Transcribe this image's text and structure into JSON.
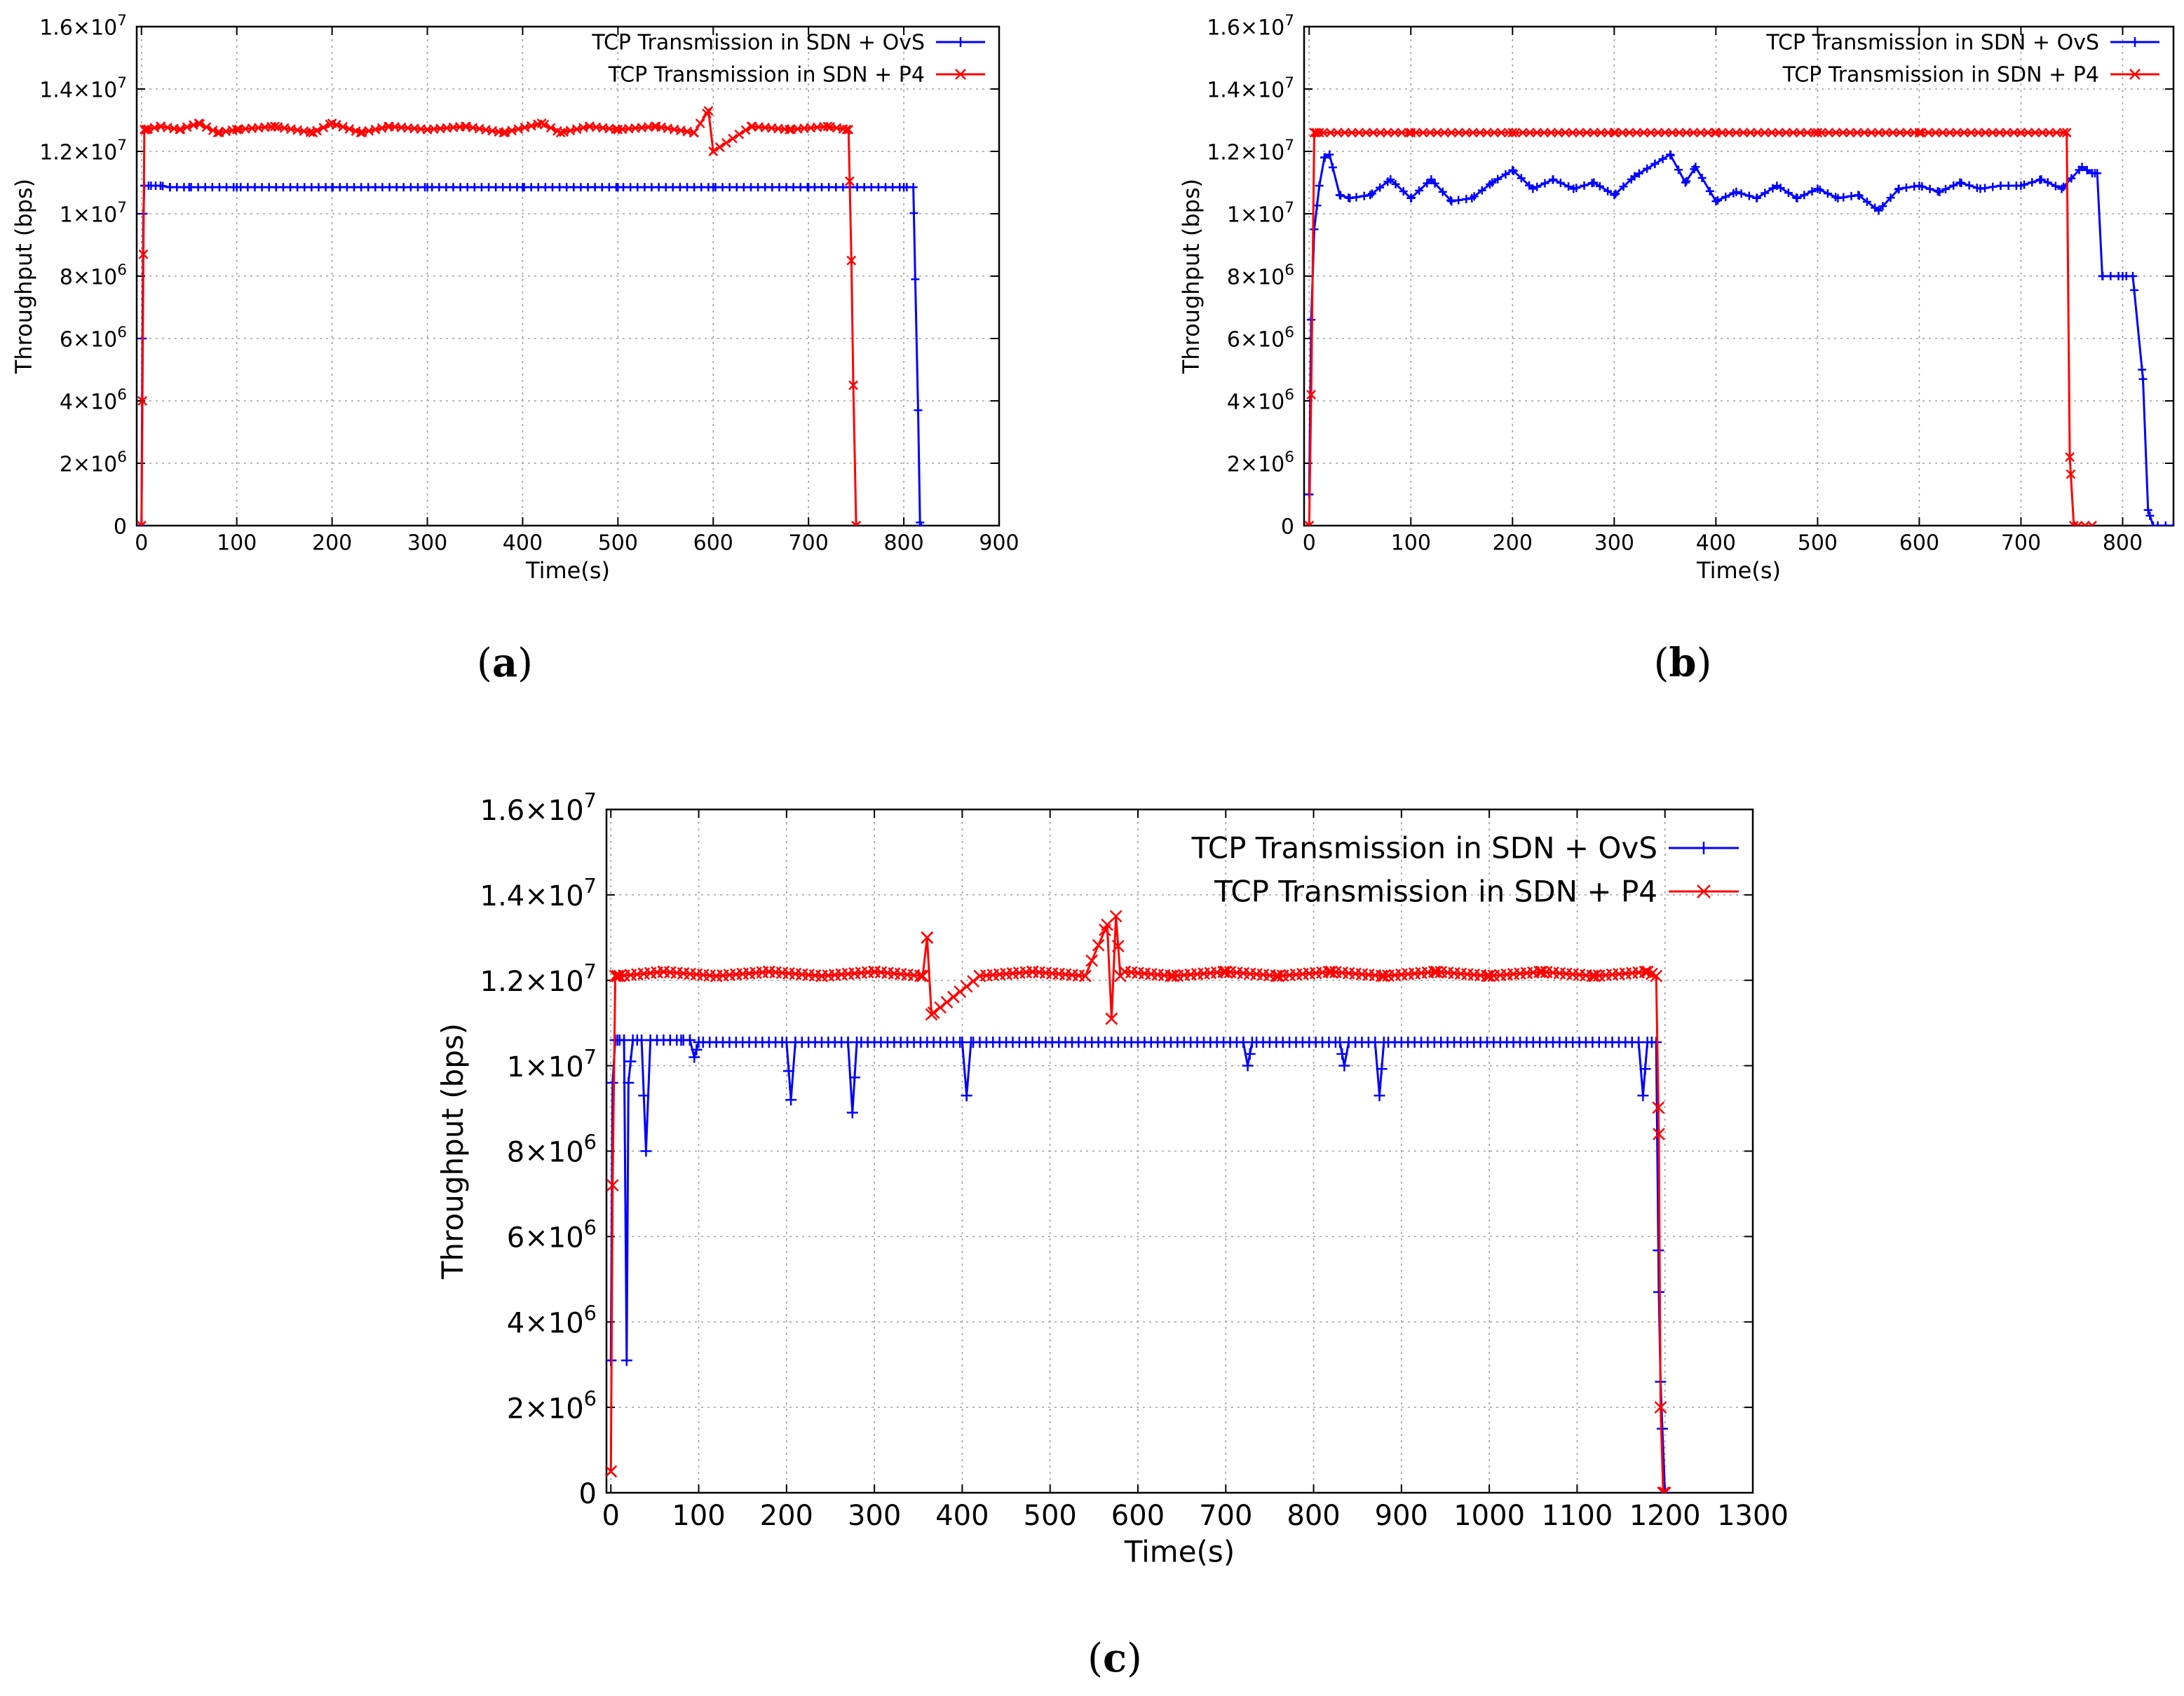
{
  "figure": {
    "panel_labels": [
      "(a)",
      "(b)",
      "(c)"
    ]
  },
  "colors": {
    "ovs": "#0000ff",
    "p4": "#ff0000",
    "grid": "#a0a0a0",
    "axis": "#000000"
  },
  "chart_data": [
    {
      "id": "a",
      "type": "line",
      "panel_label": "(a)",
      "xlabel": "Time(s)",
      "ylabel": "Throughput (bps)",
      "xlim": [
        -5,
        900
      ],
      "ylim": [
        0,
        16000000
      ],
      "xticks": [
        0,
        100,
        200,
        300,
        400,
        500,
        600,
        700,
        800,
        900
      ],
      "yticks": [
        0,
        2000000,
        4000000,
        6000000,
        8000000,
        10000000,
        12000000,
        14000000,
        16000000
      ],
      "ytick_labels": [
        {
          "mant": "0",
          "exp": ""
        },
        {
          "mant": "2×10",
          "exp": "6"
        },
        {
          "mant": "4×10",
          "exp": "6"
        },
        {
          "mant": "6×10",
          "exp": "6"
        },
        {
          "mant": "8×10",
          "exp": "6"
        },
        {
          "mant": "1×10",
          "exp": "7"
        },
        {
          "mant": "1.2×10",
          "exp": "7"
        },
        {
          "mant": "1.4×10",
          "exp": "7"
        },
        {
          "mant": "1.6×10",
          "exp": "7"
        }
      ],
      "grid": true,
      "legend_position": "top-right",
      "series": [
        {
          "name": "TCP Transmission in SDN + OvS",
          "color": "ovs",
          "marker": "plus",
          "x": [
            0,
            1,
            2,
            3,
            10,
            20,
            30,
            50,
            100,
            200,
            300,
            400,
            500,
            600,
            700,
            800,
            810,
            812,
            815,
            817,
            818
          ],
          "y": [
            0,
            6000000,
            10000000,
            10900000,
            10900000,
            10900000,
            10850000,
            10850000,
            10850000,
            10850000,
            10850000,
            10850000,
            10850000,
            10850000,
            10850000,
            10850000,
            10850000,
            7900000,
            3700000,
            100000,
            0
          ]
        },
        {
          "name": "TCP Transmission in SDN + P4",
          "color": "p4",
          "marker": "x",
          "x": [
            0,
            1,
            2,
            3,
            5,
            20,
            40,
            60,
            80,
            100,
            140,
            180,
            200,
            230,
            260,
            300,
            340,
            380,
            420,
            440,
            470,
            500,
            540,
            580,
            595,
            600,
            640,
            680,
            720,
            740,
            742,
            745,
            747,
            750
          ],
          "y": [
            0,
            4000000,
            8700000,
            12700000,
            12700000,
            12800000,
            12700000,
            12900000,
            12600000,
            12700000,
            12800000,
            12600000,
            12900000,
            12600000,
            12800000,
            12700000,
            12800000,
            12600000,
            12900000,
            12600000,
            12800000,
            12700000,
            12800000,
            12600000,
            13300000,
            12000000,
            12800000,
            12700000,
            12800000,
            12700000,
            12700000,
            8500000,
            4500000,
            0
          ]
        }
      ]
    },
    {
      "id": "b",
      "type": "line",
      "panel_label": "(b)",
      "xlabel": "Time(s)",
      "ylabel": "Throughput (bps)",
      "xlim": [
        -5,
        850
      ],
      "ylim": [
        0,
        16000000
      ],
      "xticks": [
        0,
        100,
        200,
        300,
        400,
        500,
        600,
        700,
        800
      ],
      "yticks": [
        0,
        2000000,
        4000000,
        6000000,
        8000000,
        10000000,
        12000000,
        14000000,
        16000000
      ],
      "ytick_labels": [
        {
          "mant": "0",
          "exp": ""
        },
        {
          "mant": "2×10",
          "exp": "6"
        },
        {
          "mant": "4×10",
          "exp": "6"
        },
        {
          "mant": "6×10",
          "exp": "6"
        },
        {
          "mant": "8×10",
          "exp": "6"
        },
        {
          "mant": "1×10",
          "exp": "7"
        },
        {
          "mant": "1.2×10",
          "exp": "7"
        },
        {
          "mant": "1.4×10",
          "exp": "7"
        },
        {
          "mant": "1.6×10",
          "exp": "7"
        }
      ],
      "grid": true,
      "legend_position": "top-right",
      "series": [
        {
          "name": "TCP Transmission in SDN + OvS",
          "color": "ovs",
          "marker": "plus",
          "x": [
            0,
            2,
            5,
            10,
            15,
            20,
            30,
            40,
            60,
            80,
            100,
            120,
            140,
            160,
            180,
            200,
            220,
            240,
            260,
            280,
            300,
            320,
            340,
            355,
            370,
            380,
            400,
            420,
            440,
            460,
            480,
            500,
            520,
            540,
            560,
            580,
            600,
            620,
            640,
            660,
            680,
            700,
            720,
            740,
            760,
            770,
            775,
            780,
            800,
            810,
            820,
            825,
            830,
            850
          ],
          "y": [
            1000000,
            6600000,
            9500000,
            10900000,
            11800000,
            11900000,
            10600000,
            10500000,
            10600000,
            11100000,
            10500000,
            11100000,
            10400000,
            10500000,
            11000000,
            11400000,
            10800000,
            11100000,
            10800000,
            11000000,
            10600000,
            11200000,
            11600000,
            11900000,
            11000000,
            11500000,
            10400000,
            10700000,
            10500000,
            10900000,
            10500000,
            10800000,
            10500000,
            10600000,
            10100000,
            10800000,
            10900000,
            10700000,
            11000000,
            10800000,
            10900000,
            10900000,
            11100000,
            10800000,
            11500000,
            11300000,
            11300000,
            8000000,
            8000000,
            8000000,
            4700000,
            500000,
            0,
            0
          ]
        },
        {
          "name": "TCP Transmission in SDN + P4",
          "color": "p4",
          "marker": "x",
          "x": [
            0,
            2,
            5,
            10,
            100,
            200,
            300,
            400,
            500,
            600,
            700,
            745,
            748,
            752,
            770
          ],
          "y": [
            0,
            4200000,
            12600000,
            12600000,
            12600000,
            12600000,
            12600000,
            12600000,
            12600000,
            12600000,
            12600000,
            12600000,
            2200000,
            0,
            0
          ]
        }
      ]
    },
    {
      "id": "c",
      "type": "line",
      "panel_label": "(c)",
      "xlabel": "Time(s)",
      "ylabel": "Throughput (bps)",
      "xlim": [
        -5,
        1300
      ],
      "ylim": [
        0,
        16000000
      ],
      "xticks": [
        0,
        100,
        200,
        300,
        400,
        500,
        600,
        700,
        800,
        900,
        1000,
        1100,
        1200,
        1300
      ],
      "yticks": [
        0,
        2000000,
        4000000,
        6000000,
        8000000,
        10000000,
        12000000,
        14000000,
        16000000
      ],
      "ytick_labels": [
        {
          "mant": "0",
          "exp": ""
        },
        {
          "mant": "2×10",
          "exp": "6"
        },
        {
          "mant": "4×10",
          "exp": "6"
        },
        {
          "mant": "6×10",
          "exp": "6"
        },
        {
          "mant": "8×10",
          "exp": "6"
        },
        {
          "mant": "1×10",
          "exp": "7"
        },
        {
          "mant": "1.2×10",
          "exp": "7"
        },
        {
          "mant": "1.4×10",
          "exp": "7"
        },
        {
          "mant": "1.6×10",
          "exp": "7"
        }
      ],
      "grid": true,
      "legend_position": "top-right",
      "series": [
        {
          "name": "TCP Transmission in SDN + OvS",
          "color": "ovs",
          "marker": "plus",
          "x": [
            0,
            2,
            5,
            10,
            15,
            18,
            20,
            25,
            35,
            40,
            45,
            80,
            90,
            95,
            100,
            200,
            205,
            210,
            270,
            275,
            280,
            400,
            405,
            410,
            720,
            725,
            730,
            830,
            835,
            840,
            870,
            875,
            880,
            1170,
            1175,
            1180,
            1190,
            1193,
            1195,
            1197,
            1200
          ],
          "y": [
            3100000,
            9600000,
            10600000,
            10600000,
            10600000,
            3100000,
            9600000,
            10600000,
            10600000,
            8000000,
            10600000,
            10600000,
            10600000,
            10200000,
            10550000,
            10550000,
            9200000,
            10550000,
            10550000,
            8900000,
            10550000,
            10550000,
            9300000,
            10550000,
            10550000,
            10000000,
            10550000,
            10550000,
            10000000,
            10550000,
            10550000,
            9300000,
            10550000,
            10550000,
            9300000,
            10550000,
            10550000,
            4700000,
            2600000,
            1500000,
            0
          ]
        },
        {
          "name": "TCP Transmission in SDN + P4",
          "color": "p4",
          "marker": "x",
          "x": [
            0,
            2,
            5,
            10,
            60,
            120,
            180,
            240,
            300,
            355,
            360,
            365,
            420,
            480,
            540,
            565,
            570,
            575,
            580,
            585,
            640,
            700,
            760,
            820,
            880,
            940,
            1000,
            1060,
            1120,
            1180,
            1190,
            1193,
            1195,
            1198,
            1200
          ],
          "y": [
            500000,
            7200000,
            12100000,
            12100000,
            12200000,
            12100000,
            12200000,
            12100000,
            12200000,
            12100000,
            13000000,
            11200000,
            12100000,
            12200000,
            12100000,
            13300000,
            11100000,
            13500000,
            12100000,
            12200000,
            12100000,
            12200000,
            12100000,
            12200000,
            12100000,
            12200000,
            12100000,
            12200000,
            12100000,
            12200000,
            12100000,
            8400000,
            2000000,
            0,
            0
          ]
        }
      ]
    }
  ]
}
